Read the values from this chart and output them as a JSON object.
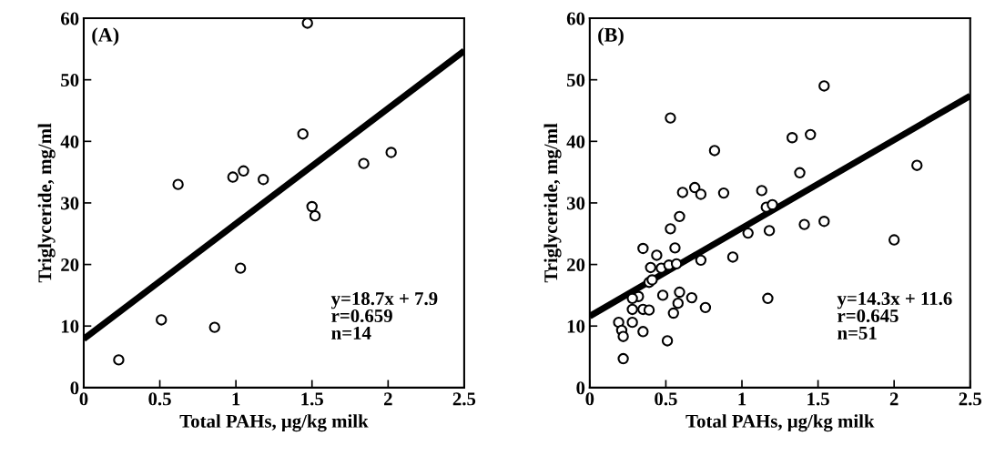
{
  "chart_data": [
    {
      "type": "scatter",
      "xlabel": "Total PAHs, μg/kg milk",
      "ylabel": "Triglyceride, mg/ml",
      "xlim": [
        0,
        2.5
      ],
      "ylim": [
        0,
        60
      ],
      "xticks": [
        0,
        0.5,
        1,
        1.5,
        2,
        2.5
      ],
      "yticks": [
        0,
        10,
        20,
        30,
        40,
        50,
        60
      ],
      "grid": false,
      "legend": false,
      "annotations": [
        "(A)",
        "y=18.7x + 7.9",
        "r=0.659",
        "n=14"
      ],
      "series": [
        {
          "marker": "circle",
          "color": "#000000",
          "x": [
            0.23,
            0.51,
            0.62,
            0.86,
            0.98,
            1.05,
            1.03,
            1.18,
            1.44,
            1.47,
            1.5,
            1.52,
            1.84,
            2.02
          ],
          "values": [
            4.5,
            11,
            33,
            9.8,
            34.2,
            35.2,
            19.4,
            33.8,
            41.2,
            59.2,
            29.4,
            27.9,
            36.4,
            38.2
          ]
        },
        {
          "type": "line",
          "marker": "none",
          "line_style": "solid",
          "color": "#000000",
          "x": [
            0,
            2.5
          ],
          "values": [
            7.9,
            54.7
          ]
        }
      ]
    },
    {
      "type": "scatter",
      "xlabel": "Total PAHs, μg/kg milk",
      "ylabel": "Triglyceride, mg/ml",
      "xlim": [
        0,
        2.5
      ],
      "ylim": [
        0,
        60
      ],
      "xticks": [
        0,
        0.5,
        1,
        1.5,
        2,
        2.5
      ],
      "yticks": [
        0,
        10,
        20,
        30,
        40,
        50,
        60
      ],
      "grid": false,
      "legend": false,
      "annotations": [
        "(B)",
        "y=14.3x + 11.6",
        "r=0.645",
        "n=51"
      ],
      "series": [
        {
          "marker": "circle",
          "color": "#000000",
          "x": [
            0.53,
            1.54,
            1.33,
            1.45,
            0.82,
            2.15,
            1.38,
            1.13,
            0.61,
            0.69,
            0.73,
            0.88,
            1.16,
            1.2,
            0.59,
            1.41,
            1.54,
            0.53,
            1.04,
            1.18,
            2.0,
            0.35,
            0.56,
            0.44,
            0.94,
            0.73,
            0.4,
            0.47,
            0.52,
            0.57,
            0.39,
            0.41,
            0.48,
            0.59,
            0.32,
            0.28,
            0.67,
            0.58,
            1.17,
            0.28,
            0.35,
            0.39,
            0.55,
            0.76,
            0.19,
            0.28,
            0.21,
            0.35,
            0.22,
            0.51,
            0.22
          ],
          "values": [
            43.8,
            49.0,
            40.6,
            41.1,
            38.5,
            36.1,
            34.9,
            32.0,
            31.7,
            32.5,
            31.4,
            31.6,
            29.3,
            29.7,
            27.8,
            26.5,
            27.0,
            25.8,
            25.1,
            25.5,
            24.0,
            22.6,
            22.7,
            21.5,
            21.2,
            20.7,
            19.5,
            19.4,
            19.9,
            20.1,
            17.1,
            17.5,
            15.0,
            15.5,
            14.8,
            14.5,
            14.6,
            13.7,
            14.5,
            12.7,
            12.7,
            12.6,
            12.1,
            13.0,
            10.6,
            10.6,
            9.3,
            9.1,
            8.3,
            7.6,
            4.7
          ]
        },
        {
          "type": "line",
          "marker": "none",
          "line_style": "solid",
          "color": "#000000",
          "x": [
            0,
            2.5
          ],
          "values": [
            11.6,
            47.4
          ]
        }
      ]
    }
  ]
}
